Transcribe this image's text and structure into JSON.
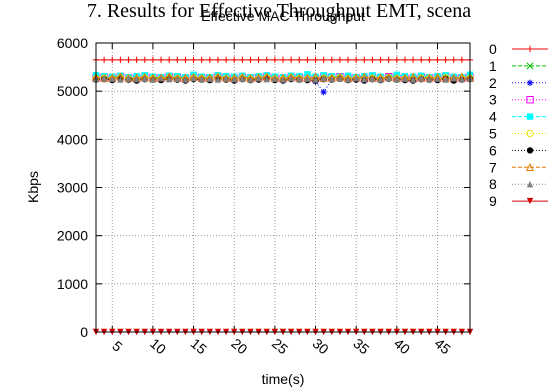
{
  "page": {
    "caption": "7. Results for Effective Throughput EMT, scena"
  },
  "chart_data": {
    "type": "line",
    "title": "Effective MAC Throughput",
    "xlabel": "time(s)",
    "ylabel": "Kbps",
    "xlim": [
      3,
      49
    ],
    "ylim": [
      0,
      6000
    ],
    "x_ticks": [
      5,
      10,
      15,
      20,
      25,
      30,
      35,
      40,
      45
    ],
    "x_tick_labels": [
      "5",
      "10",
      "15",
      "20",
      "25",
      "30",
      "35",
      "40",
      "45"
    ],
    "y_ticks": [
      0,
      1000,
      2000,
      3000,
      4000,
      5000,
      6000
    ],
    "y_tick_labels": [
      "0",
      "1000",
      "2000",
      "3000",
      "4000",
      "5000",
      "6000"
    ],
    "x_tick_label_rotation": "rotated",
    "grid": true,
    "legend_position": "right-outside",
    "x": [
      3,
      4,
      5,
      6,
      7,
      8,
      9,
      10,
      11,
      12,
      13,
      14,
      15,
      16,
      17,
      18,
      19,
      20,
      21,
      22,
      23,
      24,
      25,
      26,
      27,
      28,
      29,
      30,
      31,
      32,
      33,
      34,
      35,
      36,
      37,
      38,
      39,
      40,
      41,
      42,
      43,
      44,
      45,
      46,
      47,
      48,
      49
    ],
    "series": [
      {
        "name": "0",
        "color": "#ff0000",
        "dash": "solid",
        "marker": "plus",
        "values": [
          5650,
          5650,
          5650,
          5650,
          5650,
          5650,
          5650,
          5650,
          5650,
          5650,
          5650,
          5650,
          5650,
          5650,
          5650,
          5650,
          5650,
          5650,
          5650,
          5650,
          5650,
          5650,
          5650,
          5650,
          5650,
          5650,
          5650,
          5650,
          5650,
          5650,
          5650,
          5650,
          5650,
          5650,
          5650,
          5650,
          5650,
          5650,
          5650,
          5650,
          5650,
          5650,
          5650,
          5650,
          5650,
          5650,
          5650
        ]
      },
      {
        "name": "1",
        "color": "#00c000",
        "dash": "dashed",
        "marker": "cross",
        "values": [
          5270,
          5300,
          5260,
          5290,
          5280,
          5250,
          5300,
          5270,
          5260,
          5290,
          5280,
          5260,
          5300,
          5270,
          5250,
          5290,
          5280,
          5270,
          5300,
          5260,
          5280,
          5290,
          5270,
          5260,
          5300,
          5280,
          5270,
          5250,
          5290,
          5280,
          5300,
          5260,
          5280,
          5270,
          5290,
          5260,
          5300,
          5280,
          5270,
          5260,
          5290,
          5280,
          5270,
          5300,
          5260,
          5280,
          5290
        ]
      },
      {
        "name": "2",
        "color": "#0000ff",
        "dash": "dotted",
        "marker": "asterisk",
        "values": [
          5250,
          5260,
          5240,
          5270,
          5250,
          5230,
          5260,
          5250,
          5240,
          5260,
          5250,
          5230,
          5270,
          5250,
          5240,
          5260,
          5250,
          5240,
          5260,
          5230,
          5250,
          5260,
          5240,
          5250,
          5260,
          5250,
          5240,
          5200,
          4980,
          5240,
          5260,
          5250,
          5240,
          5260,
          5250,
          5230,
          5260,
          5250,
          5240,
          5260,
          5250,
          5240,
          5260,
          5250,
          5230,
          5260,
          5250
        ]
      },
      {
        "name": "3",
        "color": "#ff00ff",
        "dash": "dotted",
        "marker": "square",
        "values": [
          5280,
          5290,
          5270,
          5300,
          5280,
          5260,
          5290,
          5280,
          5270,
          5300,
          5280,
          5260,
          5290,
          5280,
          5270,
          5300,
          5280,
          5260,
          5290,
          5270,
          5280,
          5300,
          5270,
          5260,
          5290,
          5280,
          5270,
          5260,
          5290,
          5280,
          5300,
          5270,
          5280,
          5260,
          5290,
          5270,
          5300,
          5280,
          5270,
          5260,
          5290,
          5280,
          5270,
          5300,
          5260,
          5280,
          5290
        ]
      },
      {
        "name": "4",
        "color": "#00ffff",
        "dash": "dashed",
        "marker": "filled-square",
        "values": [
          5330,
          5310,
          5300,
          5320,
          5290,
          5310,
          5330,
          5300,
          5290,
          5320,
          5310,
          5290,
          5340,
          5300,
          5290,
          5330,
          5310,
          5300,
          5320,
          5290,
          5310,
          5330,
          5300,
          5290,
          5320,
          5310,
          5350,
          5300,
          5330,
          5310,
          5300,
          5320,
          5290,
          5310,
          5330,
          5300,
          5290,
          5340,
          5310,
          5300,
          5320,
          5290,
          5310,
          5330,
          5300,
          5290,
          5340
        ]
      },
      {
        "name": "5",
        "color": "#e6e600",
        "dash": "dotted",
        "marker": "circle",
        "values": [
          5260,
          5270,
          5250,
          5280,
          5260,
          5240,
          5270,
          5260,
          5250,
          5280,
          5260,
          5240,
          5270,
          5260,
          5250,
          5280,
          5260,
          5240,
          5270,
          5250,
          5260,
          5280,
          5250,
          5240,
          5270,
          5260,
          5250,
          5240,
          5270,
          5260,
          5280,
          5250,
          5260,
          5240,
          5270,
          5250,
          5280,
          5260,
          5250,
          5240,
          5270,
          5260,
          5250,
          5280,
          5240,
          5260,
          5270
        ]
      },
      {
        "name": "6",
        "color": "#000000",
        "dash": "dotted",
        "marker": "filled-circle",
        "values": [
          5240,
          5250,
          5230,
          5260,
          5240,
          5220,
          5250,
          5240,
          5230,
          5260,
          5240,
          5220,
          5250,
          5240,
          5230,
          5260,
          5240,
          5220,
          5250,
          5230,
          5240,
          5260,
          5230,
          5220,
          5250,
          5240,
          5230,
          5220,
          5250,
          5240,
          5260,
          5230,
          5240,
          5220,
          5250,
          5230,
          5260,
          5240,
          5230,
          5220,
          5250,
          5240,
          5230,
          5260,
          5220,
          5240,
          5250
        ]
      },
      {
        "name": "7",
        "color": "#e87a00",
        "dash": "dashed",
        "marker": "triangle",
        "values": [
          5290,
          5270,
          5280,
          5300,
          5270,
          5280,
          5290,
          5270,
          5280,
          5300,
          5270,
          5280,
          5290,
          5270,
          5280,
          5300,
          5270,
          5280,
          5290,
          5270,
          5280,
          5300,
          5270,
          5280,
          5290,
          5270,
          5280,
          5300,
          5270,
          5280,
          5290,
          5270,
          5280,
          5300,
          5270,
          5280,
          5290,
          5270,
          5280,
          5300,
          5270,
          5280,
          5290,
          5270,
          5280,
          5300,
          5270
        ]
      },
      {
        "name": "8",
        "color": "#808080",
        "dash": "dotted",
        "marker": "filled-triangle",
        "values": [
          5250,
          5270,
          5260,
          5240,
          5270,
          5250,
          5260,
          5240,
          5270,
          5250,
          5260,
          5240,
          5270,
          5250,
          5260,
          5240,
          5270,
          5250,
          5260,
          5240,
          5270,
          5250,
          5260,
          5240,
          5270,
          5250,
          5260,
          5240,
          5270,
          5250,
          5260,
          5240,
          5270,
          5250,
          5260,
          5240,
          5270,
          5250,
          5260,
          5240,
          5270,
          5250,
          5260,
          5240,
          5270,
          5250,
          5260
        ]
      },
      {
        "name": "9",
        "color": "#d00000",
        "dash": "solid",
        "marker": "filled-inverted-triangle",
        "values": [
          0,
          0,
          0,
          0,
          0,
          0,
          0,
          0,
          0,
          0,
          0,
          0,
          0,
          0,
          0,
          0,
          0,
          0,
          0,
          0,
          0,
          0,
          0,
          0,
          0,
          0,
          0,
          0,
          0,
          0,
          0,
          0,
          0,
          0,
          0,
          0,
          0,
          0,
          0,
          0,
          0,
          0,
          0,
          0,
          0,
          0,
          0
        ]
      }
    ]
  }
}
